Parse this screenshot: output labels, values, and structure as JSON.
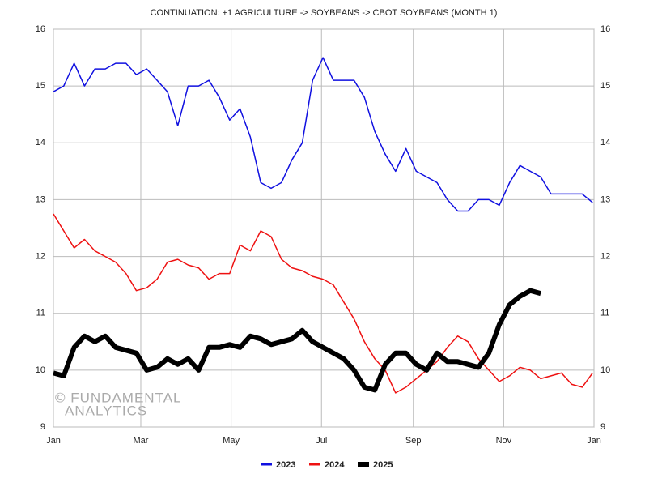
{
  "chart_data": {
    "type": "line",
    "title": "CONTINUATION: +1 AGRICULTURE -> SOYBEANS -> CBOT SOYBEANS (MONTH 1)",
    "annotations": [
      "© FUNDAMENTAL",
      "ANALYTICS"
    ],
    "x": [
      0,
      7,
      14,
      21,
      28,
      35,
      42,
      49,
      56,
      63,
      70,
      77,
      84,
      91,
      98,
      105,
      112,
      119,
      126,
      133,
      140,
      147,
      154,
      161,
      168,
      175,
      182,
      189,
      196,
      203,
      210,
      217,
      224,
      231,
      238,
      245,
      252,
      259,
      266,
      273,
      280,
      287,
      294,
      301,
      308,
      315,
      322,
      329,
      336,
      343,
      350,
      357,
      364
    ],
    "xlim": [
      0,
      365
    ],
    "xticks": [
      {
        "value": 0,
        "label": "Jan"
      },
      {
        "value": 59,
        "label": "Mar"
      },
      {
        "value": 120,
        "label": "May"
      },
      {
        "value": 181,
        "label": "Jul"
      },
      {
        "value": 243,
        "label": "Sep"
      },
      {
        "value": 304,
        "label": "Nov"
      },
      {
        "value": 365,
        "label": "Jan"
      }
    ],
    "ylim": [
      9,
      16
    ],
    "yticks": [
      9,
      10,
      11,
      12,
      13,
      14,
      15,
      16
    ],
    "grid": true,
    "series": [
      {
        "name": "2023",
        "color": "#1010e0",
        "line_width": 1.5,
        "values": [
          14.9,
          15.0,
          15.4,
          15.0,
          15.3,
          15.3,
          15.4,
          15.4,
          15.2,
          15.3,
          15.1,
          14.9,
          14.3,
          15.0,
          15.0,
          15.1,
          14.8,
          14.4,
          14.6,
          14.1,
          13.3,
          13.2,
          13.3,
          13.7,
          14.0,
          15.1,
          15.5,
          15.1,
          15.1,
          15.1,
          14.8,
          14.2,
          13.8,
          13.5,
          13.9,
          13.5,
          13.4,
          13.3,
          13.0,
          12.8,
          12.8,
          13.0,
          13.0,
          12.9,
          13.3,
          13.6,
          13.5,
          13.4,
          13.1,
          13.1,
          13.1,
          13.1,
          12.95
        ]
      },
      {
        "name": "2024",
        "color": "#ee1111",
        "line_width": 1.5,
        "values": [
          12.75,
          12.45,
          12.15,
          12.3,
          12.1,
          12.0,
          11.9,
          11.7,
          11.4,
          11.45,
          11.6,
          11.9,
          11.95,
          11.85,
          11.8,
          11.6,
          11.7,
          11.7,
          12.2,
          12.1,
          12.45,
          12.35,
          11.95,
          11.8,
          11.75,
          11.65,
          11.6,
          11.5,
          11.2,
          10.9,
          10.5,
          10.2,
          10.0,
          9.6,
          9.7,
          9.85,
          10.0,
          10.15,
          10.4,
          10.6,
          10.5,
          10.2,
          10.0,
          9.8,
          9.9,
          10.05,
          10.0,
          9.85,
          9.9,
          9.95,
          9.75,
          9.7,
          9.95
        ]
      },
      {
        "name": "2025",
        "color": "#000000",
        "line_width": 6,
        "values": [
          9.95,
          9.9,
          10.4,
          10.6,
          10.5,
          10.6,
          10.4,
          10.35,
          10.3,
          10.0,
          10.05,
          10.2,
          10.1,
          10.2,
          10.0,
          10.4,
          10.4,
          10.45,
          10.4,
          10.6,
          10.55,
          10.45,
          10.5,
          10.55,
          10.7,
          10.5,
          10.4,
          10.3,
          10.2,
          10.0,
          9.7,
          9.65,
          10.1,
          10.3,
          10.3,
          10.1,
          10.0,
          10.3,
          10.15,
          10.15,
          10.1,
          10.05,
          10.3,
          10.8,
          11.15,
          11.3,
          11.4,
          11.35,
          null,
          null,
          null,
          null,
          null
        ]
      }
    ]
  }
}
